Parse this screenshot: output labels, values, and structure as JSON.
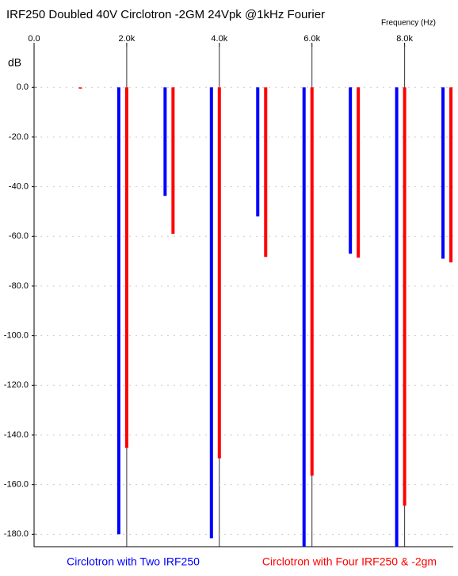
{
  "chart_data": {
    "type": "bar",
    "title": "IRF250 Doubled 40V Circlotron -2GM 24Vpk @1kHz Fourier",
    "x_label": "Frequency   (Hz)",
    "y_label": "dB",
    "x": [
      1000,
      2000,
      3000,
      4000,
      5000,
      6000,
      7000,
      8000,
      9000
    ],
    "series": [
      {
        "name": "Circlotron with Two IRF250",
        "color": "#0000ff",
        "values": [
          null,
          -180,
          -43.7,
          -181.6,
          -52,
          -185,
          -67,
          -185,
          -69
        ]
      },
      {
        "name": "Circlotron with Four IRF250 & -2gm",
        "color": "#ff0000",
        "values": [
          -0.5,
          -145.2,
          -59,
          -149.4,
          -68.3,
          -156.4,
          -68.6,
          -168.5,
          -70.5
        ]
      }
    ],
    "xlim": [
      0,
      9050
    ],
    "xticks": [
      {
        "value": 0,
        "label": "0.0"
      },
      {
        "value": 2000,
        "label": "2.0k"
      },
      {
        "value": 4000,
        "label": "4.0k"
      },
      {
        "value": 6000,
        "label": "6.0k"
      },
      {
        "value": 8000,
        "label": "8.0k"
      }
    ],
    "ylim": [
      -185,
      17
    ],
    "yticks": [
      {
        "value": 0,
        "label": "0.0"
      },
      {
        "value": -20,
        "label": "-20.0"
      },
      {
        "value": -40,
        "label": "-40.0"
      },
      {
        "value": -60,
        "label": "-60.0"
      },
      {
        "value": -80,
        "label": "-80.0"
      },
      {
        "value": -100,
        "label": "-100.0"
      },
      {
        "value": -120,
        "label": "-120.0"
      },
      {
        "value": -140,
        "label": "-140.0"
      },
      {
        "value": -160,
        "label": "-160.0"
      },
      {
        "value": -180,
        "label": "-180.0"
      }
    ],
    "grid": true
  }
}
